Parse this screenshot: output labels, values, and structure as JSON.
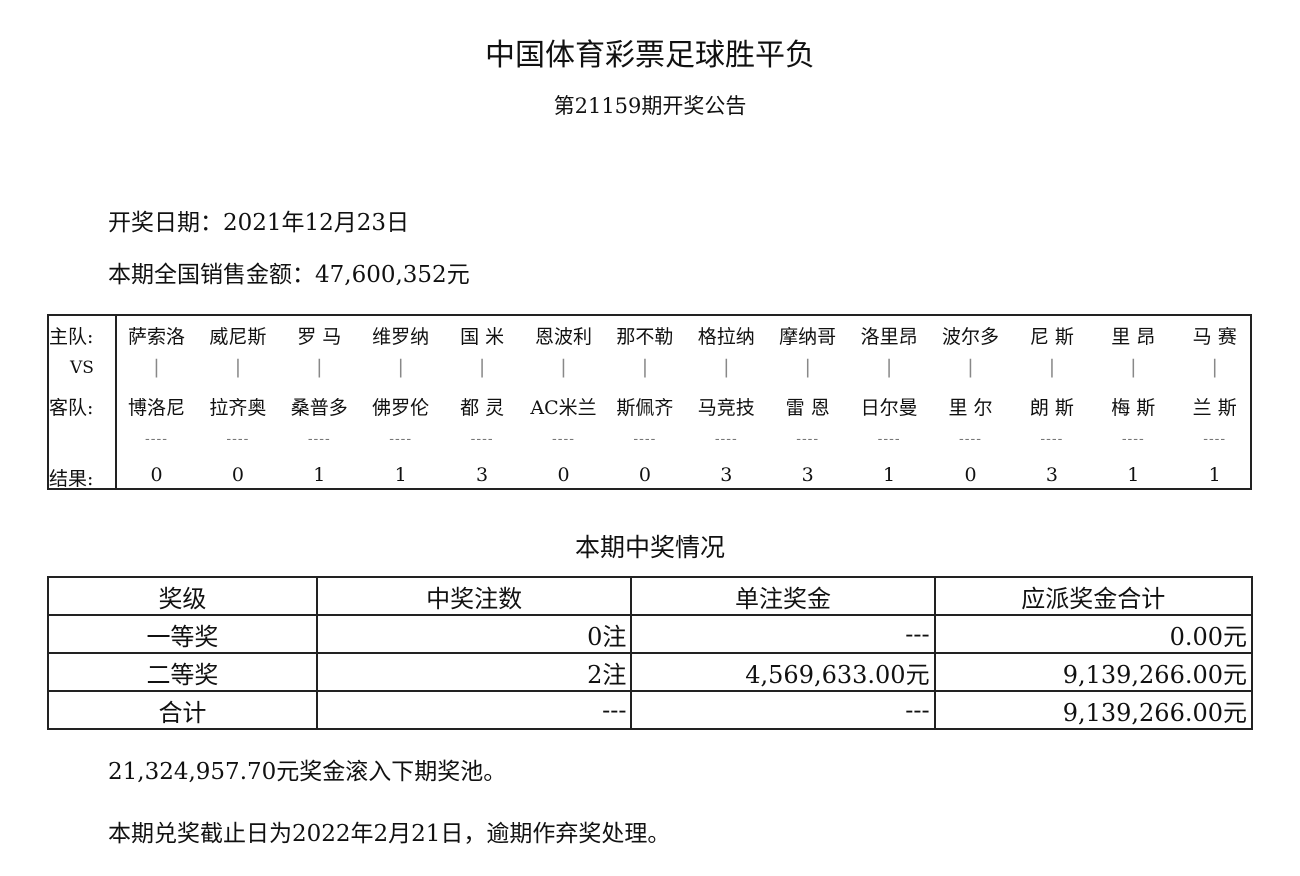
{
  "header": {
    "title": "中国体育彩票足球胜平负",
    "subtitle": "第21159期开奖公告"
  },
  "info": {
    "draw_date": "开奖日期：2021年12月23日",
    "sales": "本期全国销售金额：47,600,352元"
  },
  "match_table": {
    "labels": {
      "home": "主队:",
      "vs": "VS",
      "away": "客队:",
      "result": "结果:"
    },
    "separator": "|",
    "dash": "----",
    "matches": [
      {
        "home": "萨索洛",
        "away": "博洛尼",
        "result": "0"
      },
      {
        "home": "威尼斯",
        "away": "拉齐奥",
        "result": "0"
      },
      {
        "home": "罗 马",
        "away": "桑普多",
        "result": "1"
      },
      {
        "home": "维罗纳",
        "away": "佛罗伦",
        "result": "1"
      },
      {
        "home": "国 米",
        "away": "都 灵",
        "result": "3"
      },
      {
        "home": "恩波利",
        "away": "AC米兰",
        "result": "0"
      },
      {
        "home": "那不勒",
        "away": "斯佩齐",
        "result": "0"
      },
      {
        "home": "格拉纳",
        "away": "马竞技",
        "result": "3"
      },
      {
        "home": "摩纳哥",
        "away": "雷 恩",
        "result": "3"
      },
      {
        "home": "洛里昂",
        "away": "日尔曼",
        "result": "1"
      },
      {
        "home": "波尔多",
        "away": "里 尔",
        "result": "0"
      },
      {
        "home": "尼 斯",
        "away": "朗 斯",
        "result": "3"
      },
      {
        "home": "里 昂",
        "away": "梅 斯",
        "result": "1"
      },
      {
        "home": "马 赛",
        "away": "兰 斯",
        "result": "1"
      }
    ]
  },
  "prize": {
    "title": "本期中奖情况",
    "headers": [
      "奖级",
      "中奖注数",
      "单注奖金",
      "应派奖金合计"
    ],
    "rows": [
      [
        "一等奖",
        "0注",
        "---",
        "0.00元"
      ],
      [
        "二等奖",
        "2注",
        "4,569,633.00元",
        "9,139,266.00元"
      ],
      [
        "合计",
        "---",
        "---",
        "9,139,266.00元"
      ]
    ]
  },
  "footer": {
    "rollover": "21,324,957.70元奖金滚入下期奖池。",
    "deadline": "本期兑奖截止日为2022年2月21日，逾期作弃奖处理。"
  }
}
